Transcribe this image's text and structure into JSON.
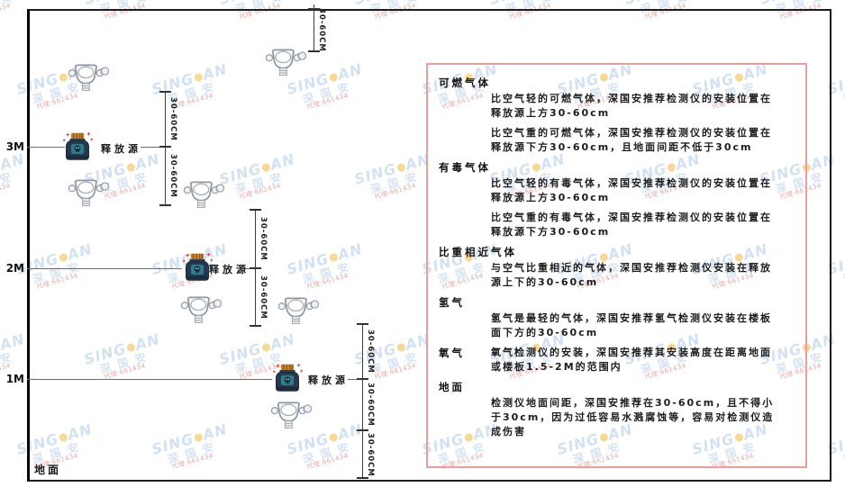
{
  "diagram": {
    "levels": [
      {
        "label": "3M"
      },
      {
        "label": "2M"
      },
      {
        "label": "1M"
      }
    ],
    "ground_label": "地面",
    "release_source_label": "释放源",
    "dim_label": "30-60CM"
  },
  "panel": {
    "sections": [
      {
        "heading": "可燃气体",
        "inline": false,
        "paragraphs": [
          "比空气轻的可燃气体，深国安推荐检测仪的安装位置在释放源上方30-60cm",
          "比空气重的可燃气体，深国安推荐检测仪的安装位置在释放源下方30-60cm，且地面间距不低于30cm"
        ]
      },
      {
        "heading": "有毒气体",
        "inline": false,
        "paragraphs": [
          "比空气轻的有毒气体，深国安推荐检测仪的安装位置在释放源上方30-60cm",
          "比空气重的有毒气体，深国安推荐检测仪的安装位置在释放源下方30-60cm"
        ]
      },
      {
        "heading": "比重相近气体",
        "inline": false,
        "paragraphs": [
          "与空气比重相近的气体，深国安推荐检测仪安装在释放源上下的30-60cm"
        ]
      },
      {
        "heading": "氢气",
        "inline": false,
        "paragraphs": [
          "氢气是最轻的气体，深国安推荐氢气检测仪安装在楼板面下方的30-60cm"
        ]
      },
      {
        "heading": "氧气",
        "inline": true,
        "paragraphs": [
          "氧气检测仪的安装，深国安推荐其安装高度在距离地面或楼板1.5-2M的范围内"
        ]
      },
      {
        "heading": "地面",
        "inline": false,
        "paragraphs": [
          "检测仪地面间距，深国安推荐在30-60cm，且不得小于30cm，因为过低容易水溅腐蚀等，容易对检测仪造成伤害"
        ]
      }
    ]
  },
  "watermark": {
    "brand_left": "SING",
    "brand_right": "AN",
    "cn": "深 国 安",
    "subtext": "代理:661434"
  },
  "colors": {
    "panel_border": "#f09c9c",
    "watermark_blue": "#aecbe9",
    "watermark_dot": "#f2bb3f",
    "watermark_red": "#d95b5b",
    "source_body": "#263850",
    "source_lid": "#c9882e",
    "source_face": "#2f7b89"
  }
}
